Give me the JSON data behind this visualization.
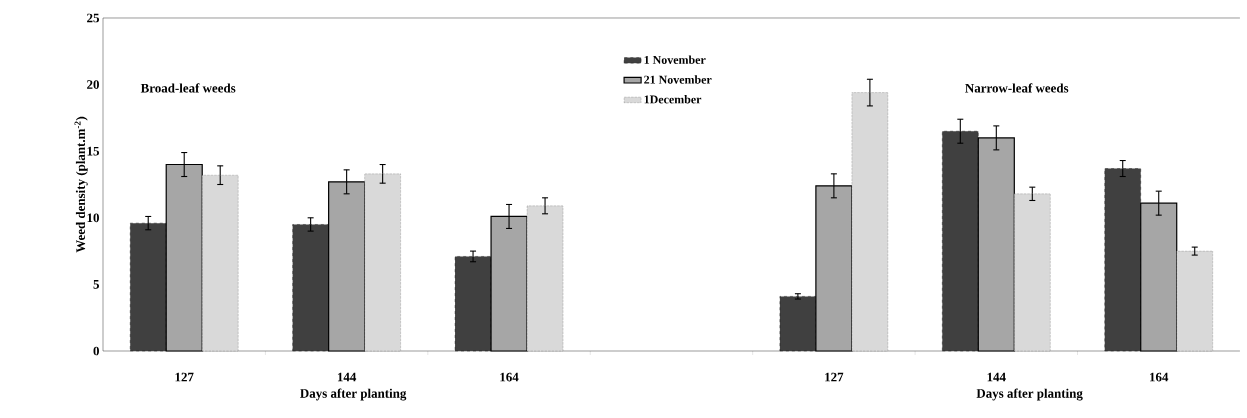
{
  "chart_data": {
    "type": "bar",
    "ylabel": "Weed density (plant.m$^{-2}$)",
    "xlabel": "Days after planting",
    "categories": [
      "127",
      "144",
      "164",
      null,
      "127",
      "144",
      "164"
    ],
    "series": [
      {
        "name": "1 November",
        "color": "#404040",
        "values": [
          9.6,
          9.5,
          7.1,
          null,
          4.1,
          16.5,
          13.7
        ],
        "errors": [
          0.5,
          0.5,
          0.4,
          null,
          0.2,
          0.9,
          0.6
        ]
      },
      {
        "name": "21 November",
        "color": "#a6a6a6",
        "values": [
          14.0,
          12.7,
          10.1,
          null,
          12.4,
          16.0,
          11.1
        ],
        "errors": [
          0.9,
          0.9,
          0.9,
          null,
          0.9,
          0.9,
          0.9
        ]
      },
      {
        "name": "1December",
        "color": "#d9d9d9",
        "values": [
          13.2,
          13.3,
          10.9,
          null,
          19.4,
          11.8,
          7.5
        ],
        "errors": [
          0.7,
          0.7,
          0.6,
          null,
          1.0,
          0.5,
          0.3
        ]
      }
    ],
    "ylim": [
      0,
      25
    ],
    "yticks": [
      0,
      5,
      10,
      15,
      20,
      25
    ],
    "legend": "top",
    "annotations": [
      "Broad-leaf weeds",
      "Narrow-leaf weeds",
      "Days after planting"
    ]
  }
}
